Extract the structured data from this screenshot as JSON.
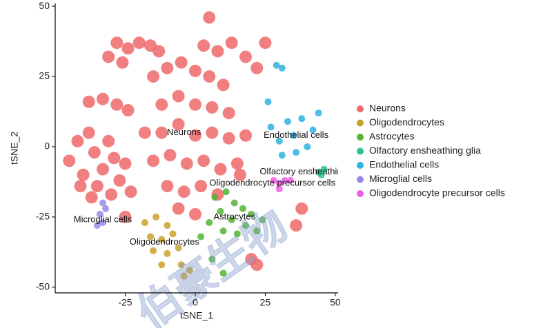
{
  "chart_data": {
    "type": "scatter",
    "x_label": "tSNE_1",
    "y_label": "tSNE_2",
    "xlim": [
      -50,
      51
    ],
    "ylim": [
      -52,
      51
    ],
    "xticks": [
      -25,
      0,
      25,
      50
    ],
    "yticks": [
      -50,
      -25,
      0,
      25,
      50
    ],
    "legend": "right",
    "watermark": "伯豪生物",
    "series": [
      {
        "name": "Neurons",
        "color": "#F0696A",
        "x": [
          -45,
          -42,
          -40,
          -38,
          -36,
          -35,
          -33,
          -31,
          -29,
          -27,
          -25,
          -23,
          -41,
          -30,
          -37,
          -38,
          -33,
          -28,
          -24,
          -31,
          -28,
          -24,
          -20,
          -16,
          -13,
          -26,
          -15,
          -10,
          -5,
          0,
          5,
          10,
          -12,
          -6,
          0,
          6,
          12,
          -18,
          -12,
          -6,
          0,
          6,
          12,
          -15,
          -9,
          -3,
          3,
          9,
          15,
          -10,
          -4,
          2,
          8,
          -6,
          0,
          16,
          18,
          3,
          8,
          13,
          18,
          22,
          25,
          5,
          -25,
          20,
          22,
          36,
          38
        ],
        "y": [
          -5,
          2,
          -10,
          5,
          -2,
          -14,
          -8,
          2,
          -4,
          -12,
          -6,
          -16,
          -14,
          -17,
          -18,
          16,
          17,
          15,
          13,
          32,
          37,
          35,
          37,
          36,
          34,
          30,
          25,
          28,
          30,
          27,
          25,
          22,
          15,
          18,
          15,
          14,
          12,
          5,
          5,
          8,
          4,
          5,
          3,
          -5,
          -3,
          -6,
          -5,
          -8,
          -6,
          -14,
          -16,
          -14,
          -17,
          -22,
          -24,
          -10,
          4,
          36,
          34,
          37,
          32,
          28,
          37,
          46,
          -25,
          -40,
          -42,
          -28,
          -22
        ]
      },
      {
        "name": "Oligodendrocytes",
        "color": "#C9A129",
        "x": [
          -18,
          -14,
          -10,
          -16,
          -12,
          -8,
          -15,
          -10,
          -6,
          -12,
          -5,
          -4,
          -2
        ],
        "y": [
          -27,
          -25,
          -28,
          -32,
          -33,
          -31,
          -37,
          -38,
          -36,
          -42,
          -42,
          -46,
          -44
        ]
      },
      {
        "name": "Astrocytes",
        "color": "#53B431",
        "x": [
          7,
          11,
          14,
          9,
          13,
          17,
          20,
          24,
          18,
          10,
          5,
          15,
          22,
          2,
          6,
          10
        ],
        "y": [
          -18,
          -16,
          -20,
          -23,
          -26,
          -22,
          -24,
          -26,
          -28,
          -30,
          -27,
          -31,
          -30,
          -32,
          -40,
          -45
        ]
      },
      {
        "name": "Olfactory ensheathing glia",
        "color": "#2AC28F",
        "x": [
          44,
          45,
          46
        ],
        "y": [
          -9,
          -10,
          -8
        ]
      },
      {
        "name": "Endothelial cells",
        "color": "#2EB2E0",
        "x": [
          27,
          30,
          33,
          35,
          38,
          40,
          42,
          36,
          31,
          44,
          29,
          31,
          26
        ],
        "y": [
          7,
          2,
          9,
          4,
          10,
          0,
          6,
          -2,
          -3,
          12,
          29,
          28,
          16
        ]
      },
      {
        "name": "Microglial cells",
        "color": "#9A8AE8",
        "x": [
          -33,
          -34,
          -35,
          -33,
          -32
        ],
        "y": [
          -20,
          -24,
          -28,
          -27,
          -22
        ]
      },
      {
        "name": "Oligodendrocyte precursor cells",
        "color": "#EE5FE6",
        "x": [
          28,
          30,
          32,
          30,
          34
        ],
        "y": [
          -12,
          -13,
          -12,
          -15,
          -12
        ]
      }
    ],
    "annotations": [
      {
        "text": "Neurons",
        "x": -4,
        "y": 5,
        "anchor": "middle"
      },
      {
        "text": "Endothelial cells",
        "x": 36,
        "y": 4,
        "anchor": "middle"
      },
      {
        "text": "Olfactory ensheathing glia",
        "x": 23,
        "y": -9,
        "anchor": "start"
      },
      {
        "text": "Oligodendrocyte precursor cells",
        "x": 5,
        "y": -13,
        "anchor": "start"
      },
      {
        "text": "Astrocytes",
        "x": 14,
        "y": -25,
        "anchor": "middle"
      },
      {
        "text": "Microglial cells",
        "x": -33,
        "y": -26,
        "anchor": "middle"
      },
      {
        "text": "Oligodendrocytes",
        "x": -11,
        "y": -34,
        "anchor": "middle"
      }
    ]
  }
}
